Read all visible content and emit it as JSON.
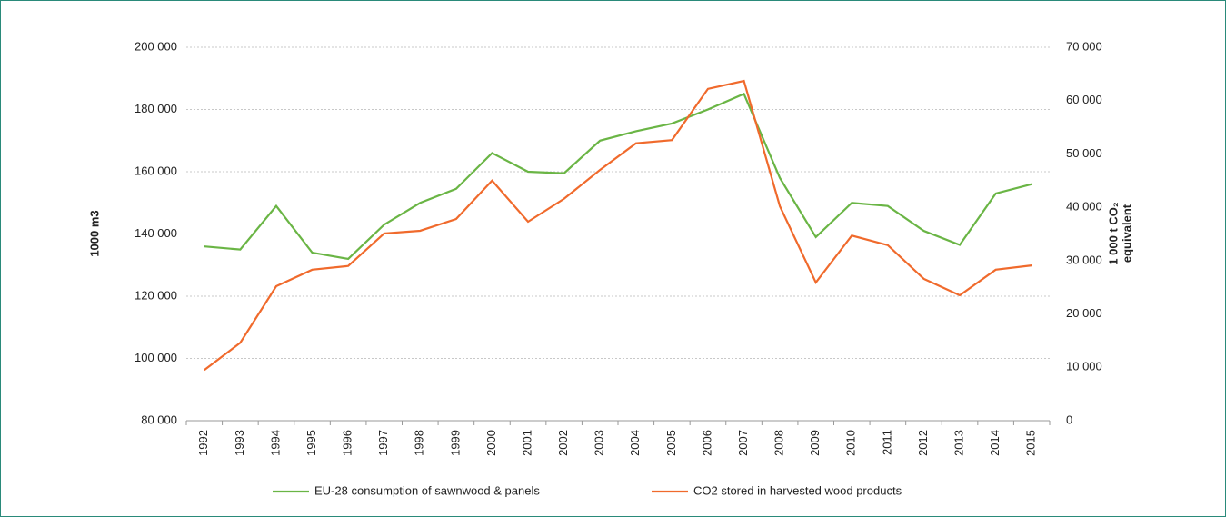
{
  "chart_data": {
    "type": "line",
    "ylabel": "1000 m3",
    "y2label": [
      "1 000 t CO₂",
      "equivalent"
    ],
    "categories": [
      "1992",
      "1993",
      "1994",
      "1995",
      "1996",
      "1997",
      "1998",
      "1999",
      "2000",
      "2001",
      "2002",
      "2003",
      "2004",
      "2005",
      "2006",
      "2007",
      "2008",
      "2009",
      "2010",
      "2011",
      "2012",
      "2013",
      "2014",
      "2015"
    ],
    "series": [
      {
        "name": "EU-28 consumption of sawnwood & panels",
        "color": "#6ab545",
        "values": [
          136000,
          135000,
          149000,
          134000,
          132000,
          143000,
          150000,
          154500,
          166000,
          160000,
          159500,
          170000,
          173000,
          175500,
          180000,
          185000,
          158000,
          139000,
          150000,
          149000,
          141000,
          136500,
          153000,
          156000
        ]
      },
      {
        "name": "CO2 stored in harvested wood products",
        "color": "#f06a2c",
        "axis": "y2",
        "values": [
          9500,
          14600,
          25200,
          28300,
          29000,
          35100,
          35600,
          37800,
          45000,
          37300,
          41600,
          47000,
          52000,
          52600,
          62200,
          63700,
          40200,
          25900,
          34700,
          32900,
          26600,
          23500,
          28300,
          29100
        ]
      }
    ],
    "ylim": [
      80000,
      200000
    ],
    "yticks": [
      {
        "value": 80000,
        "label": "80 000"
      },
      {
        "value": 100000,
        "label": "100 000"
      },
      {
        "value": 120000,
        "label": "120 000"
      },
      {
        "value": 140000,
        "label": "140 000"
      },
      {
        "value": 160000,
        "label": "160 000"
      },
      {
        "value": 180000,
        "label": "180 000"
      },
      {
        "value": 200000,
        "label": "200 000"
      }
    ],
    "y2lim": [
      0,
      70000
    ],
    "y2ticks": [
      0,
      {
        "value": 10000,
        "label": "10 000"
      },
      {
        "value": 20000,
        "label": "20 000"
      },
      {
        "value": 30000,
        "label": "30 000"
      },
      {
        "value": 40000,
        "label": "40 000"
      },
      {
        "value": 50000,
        "label": "50 000"
      },
      {
        "value": 60000,
        "label": "60 000"
      },
      {
        "value": 70000,
        "label": "70 000"
      }
    ],
    "grid": true,
    "legend": "bottom"
  }
}
